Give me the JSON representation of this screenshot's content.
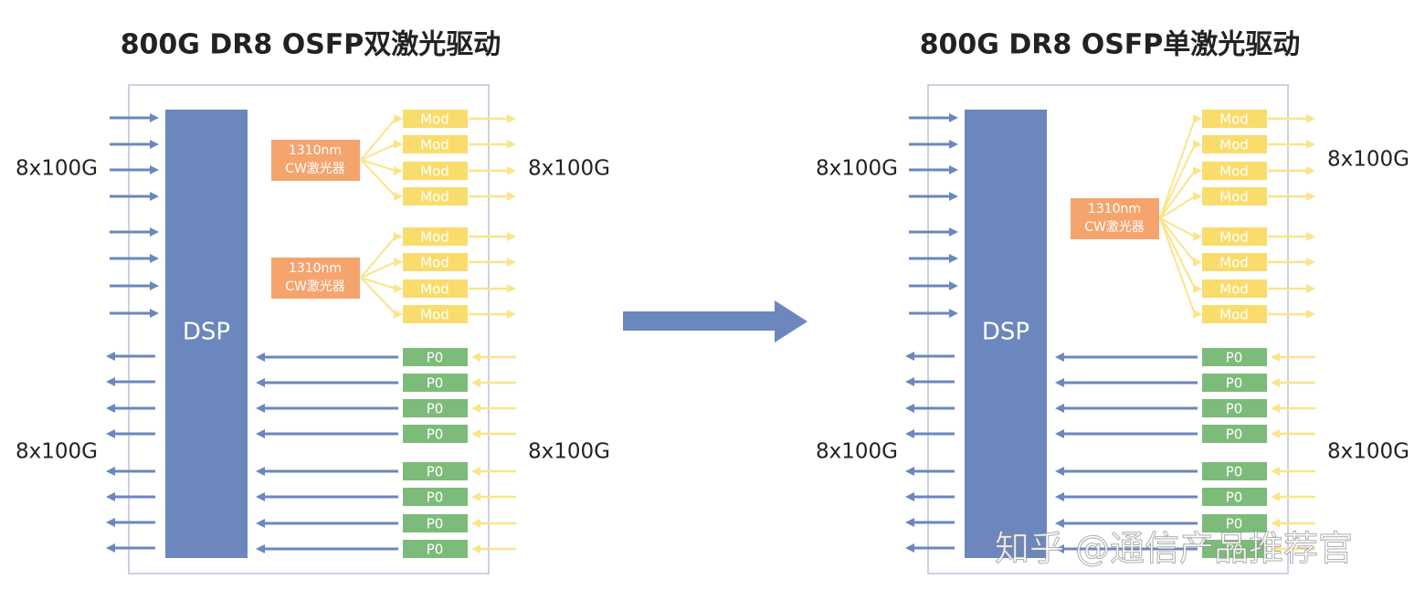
{
  "panels": [
    {
      "title": "800G DR8 OSFP双激光驱动",
      "dsp": "DSP",
      "io_labels": [
        "8x100G",
        "8x100G",
        "8x100G",
        "8x100G"
      ],
      "lasers": [
        {
          "line1": "1310nm",
          "line2": "CW激光器"
        },
        {
          "line1": "1310nm",
          "line2": "CW激光器"
        }
      ],
      "mods": [
        "Mod",
        "Mod",
        "Mod",
        "Mod",
        "Mod",
        "Mod",
        "Mod",
        "Mod"
      ],
      "pds": [
        "P0",
        "P0",
        "P0",
        "P0",
        "P0",
        "P0",
        "P0",
        "P0"
      ]
    },
    {
      "title": "800G DR8 OSFP单激光驱动",
      "dsp": "DSP",
      "io_labels": [
        "8x100G",
        "8x100G",
        "8x100G",
        "8x100G"
      ],
      "lasers": [
        {
          "line1": "1310nm",
          "line2": "CW激光器"
        }
      ],
      "mods": [
        "Mod",
        "Mod",
        "Mod",
        "Mod",
        "Mod",
        "Mod",
        "Mod",
        "Mod"
      ],
      "pds": [
        "P0",
        "P0",
        "P0",
        "P0",
        "P0",
        "P0",
        "P0",
        "P0"
      ]
    }
  ],
  "watermark": "知乎 @通信产品推荐官"
}
